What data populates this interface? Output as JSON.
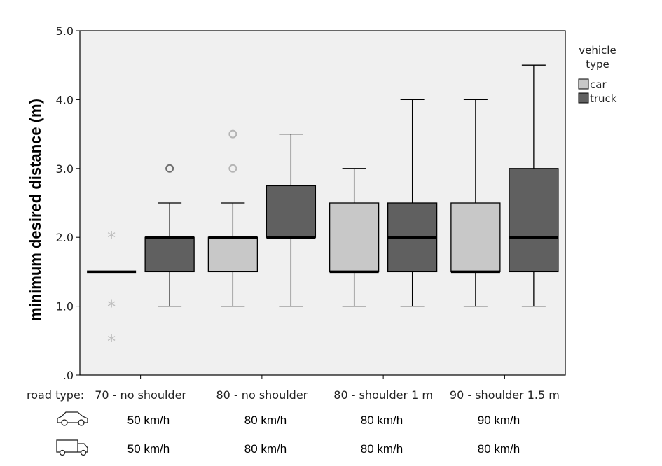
{
  "chart_data": {
    "type": "box",
    "ylabel": "minimum desired distance (m)",
    "ylim": [
      0,
      5
    ],
    "yticks": [
      {
        "value": 0,
        "label": ".0"
      },
      {
        "value": 1,
        "label": "1.0"
      },
      {
        "value": 2,
        "label": "2.0"
      },
      {
        "value": 3,
        "label": "3.0"
      },
      {
        "value": 4,
        "label": "4.0"
      },
      {
        "value": 5,
        "label": "5.0"
      }
    ],
    "x_prefix": "road type:",
    "categories": [
      "70 - no shoulder",
      "80 - no shoulder",
      "80 - shoulder 1 m",
      "90 - shoulder 1.5 m"
    ],
    "legend": {
      "title_line1": "vehicle",
      "title_line2": "type",
      "placement": "right"
    },
    "series": [
      {
        "name": "car",
        "color": "#c8c8c8",
        "boxes": [
          {
            "min": 1.5,
            "q1": 1.5,
            "median": 1.5,
            "q3": 1.5,
            "max": 1.5,
            "outliers": [],
            "extremes": [
              0.5,
              1.0,
              2.0
            ]
          },
          {
            "min": 1.0,
            "q1": 1.5,
            "median": 2.0,
            "q3": 2.0,
            "max": 2.5,
            "outliers": [
              3.0,
              3.5
            ],
            "extremes": []
          },
          {
            "min": 1.0,
            "q1": 1.5,
            "median": 1.5,
            "q3": 2.5,
            "max": 3.0,
            "outliers": [],
            "extremes": []
          },
          {
            "min": 1.0,
            "q1": 1.5,
            "median": 1.5,
            "q3": 2.5,
            "max": 4.0,
            "outliers": [],
            "extremes": []
          }
        ]
      },
      {
        "name": "truck",
        "color": "#606060",
        "boxes": [
          {
            "min": 1.0,
            "q1": 1.5,
            "median": 2.0,
            "q3": 2.0,
            "max": 2.5,
            "outliers": [
              3.0
            ],
            "extremes": []
          },
          {
            "min": 1.0,
            "q1": 2.0,
            "median": 2.0,
            "q3": 2.75,
            "max": 3.5,
            "outliers": [],
            "extremes": []
          },
          {
            "min": 1.0,
            "q1": 1.5,
            "median": 2.0,
            "q3": 2.5,
            "max": 4.0,
            "outliers": [],
            "extremes": []
          },
          {
            "min": 1.0,
            "q1": 1.5,
            "median": 2.0,
            "q3": 3.0,
            "max": 4.5,
            "outliers": [],
            "extremes": []
          }
        ]
      }
    ],
    "grid": false,
    "plot_background": "#f0f0f0"
  },
  "speed_rows": [
    {
      "icon": "car-icon",
      "values": [
        "50 km/h",
        "80 km/h",
        "80 km/h",
        "90 km/h"
      ]
    },
    {
      "icon": "truck-icon",
      "values": [
        "50 km/h",
        "80 km/h",
        "80 km/h",
        "80 km/h"
      ]
    }
  ]
}
